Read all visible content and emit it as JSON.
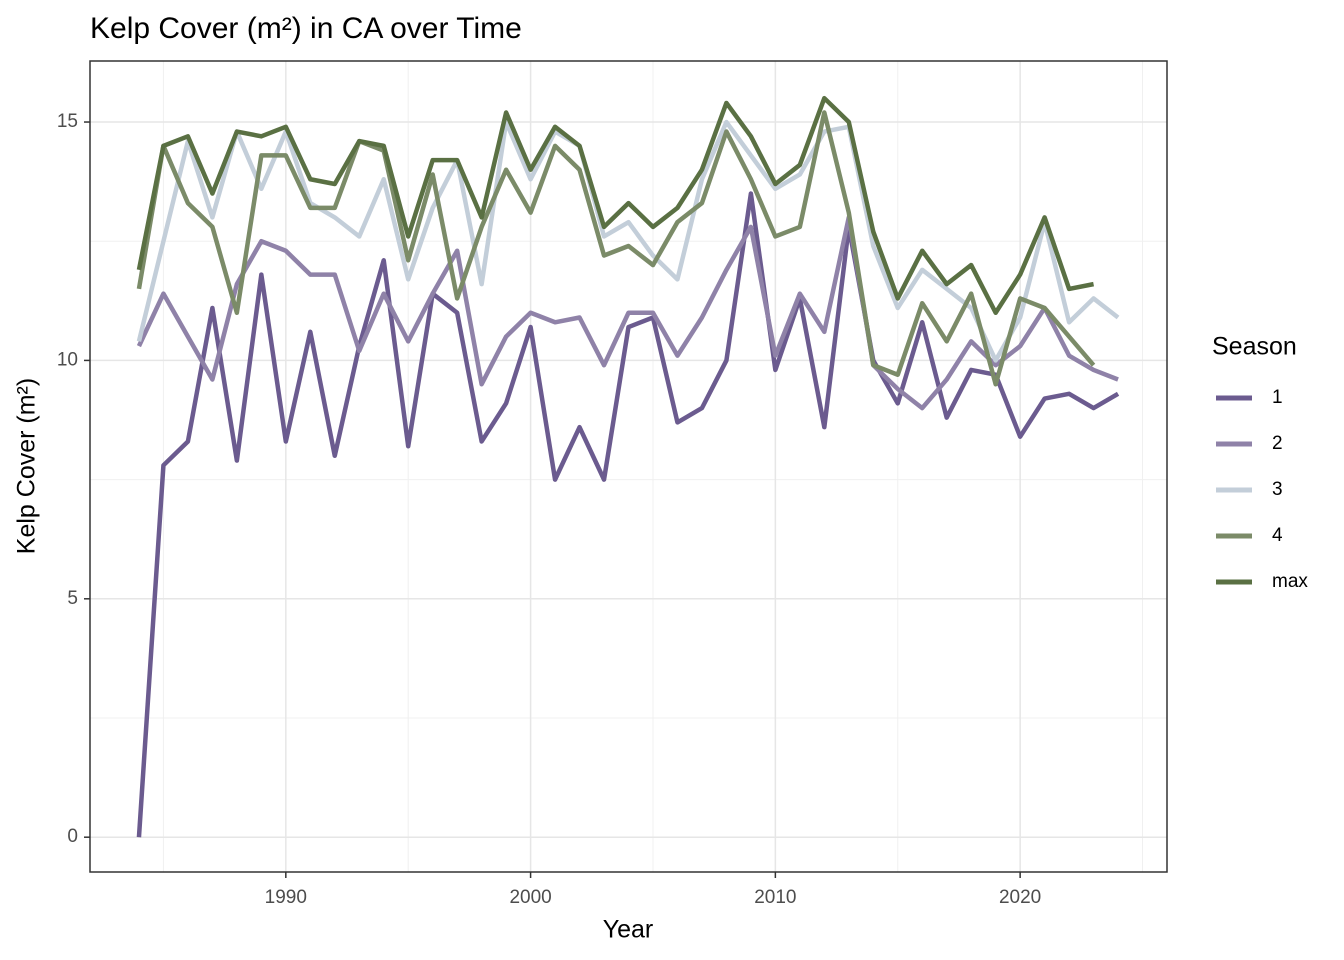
{
  "chart_data": {
    "type": "line",
    "title": "Kelp Cover (m²) in CA over Time",
    "x_label": "Year",
    "y_label": "Kelp Cover (m²)",
    "legend_title": "Season",
    "legend_position": "right",
    "grid": true,
    "xlim": [
      1982,
      2026
    ],
    "ylim": [
      -0.73,
      16.28
    ],
    "xticks": [
      1990,
      2000,
      2010,
      2020
    ],
    "yticks": [
      0,
      5,
      10,
      15
    ],
    "x_minor_grid": [
      1985,
      1995,
      2005,
      2015,
      2025
    ],
    "y_minor_grid": [
      2.5,
      7.5,
      12.5
    ],
    "x": [
      1984,
      1985,
      1986,
      1987,
      1988,
      1989,
      1990,
      1991,
      1992,
      1993,
      1994,
      1995,
      1996,
      1997,
      1998,
      1999,
      2000,
      2001,
      2002,
      2003,
      2004,
      2005,
      2006,
      2007,
      2008,
      2009,
      2010,
      2011,
      2012,
      2013,
      2014,
      2015,
      2016,
      2017,
      2018,
      2019,
      2020,
      2021,
      2022,
      2023,
      2024
    ],
    "series": [
      {
        "name": "1",
        "color": "#6b5b8f",
        "values": [
          0,
          7.8,
          8.3,
          11.1,
          7.9,
          11.8,
          8.3,
          10.6,
          8.0,
          10.3,
          12.1,
          8.2,
          11.4,
          11.0,
          8.3,
          9.1,
          10.7,
          7.5,
          8.6,
          7.5,
          10.7,
          10.9,
          8.7,
          9.0,
          10.0,
          13.5,
          9.8,
          11.3,
          8.6,
          12.8,
          10.0,
          9.1,
          10.8,
          8.8,
          9.8,
          9.7,
          8.4,
          9.2,
          9.3,
          9.0,
          9.3
        ]
      },
      {
        "name": "2",
        "color": "#8f82a8",
        "values": [
          10.3,
          11.4,
          10.5,
          9.6,
          11.6,
          12.5,
          12.3,
          11.8,
          11.8,
          10.2,
          11.4,
          10.4,
          11.4,
          12.3,
          9.5,
          10.5,
          11.0,
          10.8,
          10.9,
          9.9,
          11.0,
          11.0,
          10.1,
          10.9,
          11.9,
          12.8,
          10.1,
          11.4,
          10.6,
          13.0,
          9.9,
          9.4,
          9.0,
          9.6,
          10.4,
          9.9,
          10.3,
          11.1,
          10.1,
          9.8,
          9.6
        ]
      },
      {
        "name": "3",
        "color": "#c3ced9",
        "values": [
          10.4,
          12.5,
          14.6,
          13.0,
          14.8,
          13.6,
          14.8,
          13.3,
          13.0,
          12.6,
          13.8,
          11.7,
          13.2,
          14.2,
          11.6,
          15.0,
          13.8,
          14.8,
          14.5,
          12.6,
          12.9,
          12.2,
          11.7,
          13.8,
          15.0,
          14.3,
          13.6,
          13.9,
          14.8,
          14.9,
          12.4,
          11.1,
          11.9,
          11.5,
          11.1,
          10.0,
          10.9,
          12.9,
          10.8,
          11.3,
          10.9
        ]
      },
      {
        "name": "4",
        "color": "#7b8b68",
        "values": [
          11.5,
          14.5,
          13.3,
          12.8,
          11.0,
          14.3,
          14.3,
          13.2,
          13.2,
          14.6,
          14.4,
          12.1,
          13.9,
          11.3,
          12.8,
          14.0,
          13.1,
          14.5,
          14.0,
          12.2,
          12.4,
          12.0,
          12.9,
          13.3,
          14.8,
          13.8,
          12.6,
          12.8,
          15.2,
          13.1,
          9.9,
          9.7,
          11.2,
          10.4,
          11.4,
          9.5,
          11.3,
          11.1,
          10.5,
          9.9,
          null
        ]
      },
      {
        "name": "max",
        "color": "#5a7043",
        "values": [
          11.9,
          14.5,
          14.7,
          13.5,
          14.8,
          14.7,
          14.9,
          13.8,
          13.7,
          14.6,
          14.5,
          12.6,
          14.2,
          14.2,
          13.0,
          15.2,
          14.0,
          14.9,
          14.5,
          12.8,
          13.3,
          12.8,
          13.2,
          14.0,
          15.4,
          14.7,
          13.7,
          14.1,
          15.5,
          15.0,
          12.7,
          11.3,
          12.3,
          11.6,
          12.0,
          11.0,
          11.8,
          13.0,
          11.5,
          11.6,
          null
        ]
      }
    ]
  }
}
